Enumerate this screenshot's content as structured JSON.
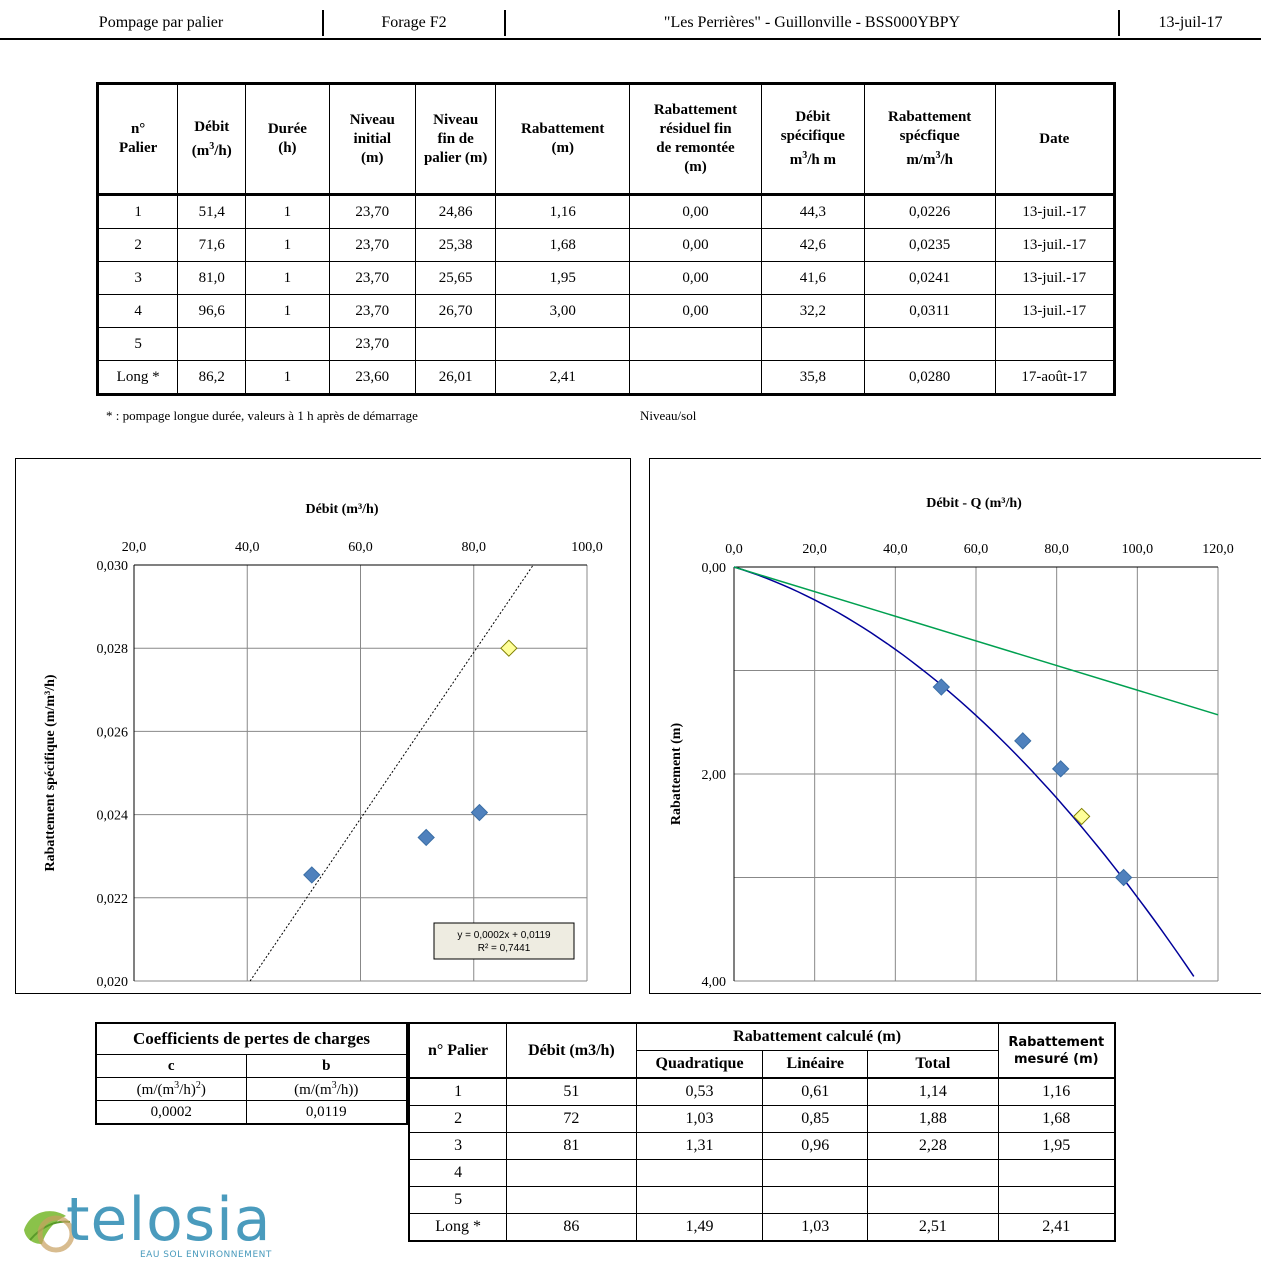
{
  "header": {
    "cells": [
      "Pompage par palier",
      "Forage F2",
      "\"Les Perrières\" - Guillonville - BSS000YBPY",
      "13-juil-17"
    ]
  },
  "main_table": {
    "headers": [
      "n° Palier",
      "Débit (m3/h)",
      "Durée (h)",
      "Niveau initial (m)",
      "Niveau fin de palier (m)",
      "Rabattement (m)",
      "Rabattement résiduel fin de remontée (m)",
      "Débit spécifique m3/h m",
      "Rabattement spécfique m/m3/h",
      "Date"
    ],
    "header_parts": {
      "palier": [
        "n°",
        "Palier"
      ],
      "debit": [
        "Débit",
        "(m",
        "3",
        "/h)"
      ],
      "duree": [
        "Durée",
        "(h)"
      ],
      "niveau_initial": [
        "Niveau",
        "initial",
        "(m)"
      ],
      "niveau_fin": [
        "Niveau",
        "fin de",
        "palier (m)"
      ],
      "rabattement": [
        "Rabattement",
        "(m)"
      ],
      "residuel": [
        "Rabattement",
        "résiduel fin",
        "de remontée",
        "(m)"
      ],
      "debit_spec": [
        "Débit",
        "spécifique",
        "m",
        "3",
        "/h m"
      ],
      "rab_spec": [
        "Rabattement",
        "spécfique",
        "m/m",
        "3",
        "/h"
      ],
      "date": [
        "Date"
      ]
    },
    "rows": [
      [
        "1",
        "51,4",
        "1",
        "23,70",
        "24,86",
        "1,16",
        "0,00",
        "44,3",
        "0,0226",
        "13-juil.-17"
      ],
      [
        "2",
        "71,6",
        "1",
        "23,70",
        "25,38",
        "1,68",
        "0,00",
        "42,6",
        "0,0235",
        "13-juil.-17"
      ],
      [
        "3",
        "81,0",
        "1",
        "23,70",
        "25,65",
        "1,95",
        "0,00",
        "41,6",
        "0,0241",
        "13-juil.-17"
      ],
      [
        "4",
        "96,6",
        "1",
        "23,70",
        "26,70",
        "3,00",
        "0,00",
        "32,2",
        "0,0311",
        "13-juil.-17"
      ],
      [
        "5",
        "",
        "",
        "23,70",
        "",
        "",
        "",
        "",
        "",
        ""
      ],
      [
        "Long *",
        "86,2",
        "1",
        "23,60",
        "26,01",
        "2,41",
        "",
        "35,8",
        "0,0280",
        "17-août-17"
      ]
    ]
  },
  "footnote": "* : pompage longue durée, valeurs à 1 h après de démarrage",
  "niveau_note": "Niveau/sol",
  "chart_data": [
    {
      "type": "scatter",
      "title": "Débit (m³/h)",
      "xlabel": "",
      "ylabel": "Rabattement spécifique (m/m³/h)",
      "xlim": [
        20,
        100
      ],
      "ylim": [
        0.02,
        0.03
      ],
      "x_ticks": [
        "20,0",
        "40,0",
        "60,0",
        "80,0",
        "100,0"
      ],
      "y_ticks": [
        "0,030",
        "0,028",
        "0,026",
        "0,024",
        "0,022",
        "0,020"
      ],
      "x_axis_position": "top",
      "grid": true,
      "series": [
        {
          "points": [
            [
              51.4,
              0.02255
            ],
            [
              71.6,
              0.02345
            ],
            [
              81.0,
              0.02405
            ]
          ],
          "marker": "diamond",
          "color": "#4f81bd"
        },
        {
          "points": [
            [
              86.2,
              0.028
            ]
          ],
          "marker": "diamond",
          "color": "#ffff99"
        }
      ],
      "trendline": {
        "slope": 0.0002,
        "intercept": 0.0119,
        "style": "dotted",
        "color": "#000000"
      },
      "annotation": [
        "y = 0,0002x  + 0,0119",
        "R² = 0,7441"
      ]
    },
    {
      "type": "line",
      "title": "Débit - Q (m³/h)",
      "xlabel": "",
      "ylabel": "Rabattement (m)",
      "xlim": [
        0,
        120
      ],
      "ylim": [
        4,
        0
      ],
      "y_inverted": true,
      "x_ticks": [
        "0,0",
        "20,0",
        "40,0",
        "60,0",
        "80,0",
        "100,0",
        "120,0"
      ],
      "y_ticks": [
        "0,00",
        "2,00",
        "4,00"
      ],
      "x_axis_position": "top",
      "grid": true,
      "series": [
        {
          "points": [
            [
              51.4,
              1.16
            ],
            [
              71.6,
              1.68
            ],
            [
              81.0,
              1.95
            ],
            [
              96.6,
              3.0
            ]
          ],
          "marker": "diamond",
          "color": "#4f81bd"
        },
        {
          "points": [
            [
              86.2,
              2.41
            ]
          ],
          "marker": "diamond",
          "color": "#ffff99"
        }
      ],
      "curves": [
        {
          "kind": "quadratic",
          "c": 0.0002,
          "b": 0.0119,
          "color": "#000099"
        },
        {
          "kind": "linear",
          "b": 0.0119,
          "color": "#00a050"
        }
      ]
    }
  ],
  "coef_table": {
    "title": "Coefficients de pertes de charges",
    "col_c": "c",
    "col_b": "b",
    "unit_c": [
      "(m/(m",
      "3",
      "/h)",
      "2",
      ")"
    ],
    "unit_b": [
      "(m/(m",
      "3",
      "/h))"
    ],
    "value_c": "0,0002",
    "value_b": "0,0119"
  },
  "calc_table": {
    "h_palier": "n° Palier",
    "h_debit": "Débit (m3/h)",
    "h_calcule": "Rabattement calculé (m)",
    "h_mesure": [
      "Rabattement",
      "mesuré (m)"
    ],
    "h_quad": "Quadratique",
    "h_lin": "Linéaire",
    "h_total": "Total",
    "rows": [
      [
        "1",
        "51",
        "0,53",
        "0,61",
        "1,14",
        "1,16"
      ],
      [
        "2",
        "72",
        "1,03",
        "0,85",
        "1,88",
        "1,68"
      ],
      [
        "3",
        "81",
        "1,31",
        "0,96",
        "2,28",
        "1,95"
      ],
      [
        "4",
        "",
        "",
        "",
        "",
        ""
      ],
      [
        "5",
        "",
        "",
        "",
        "",
        ""
      ],
      [
        "Long *",
        "86",
        "1,49",
        "1,03",
        "2,51",
        "2,41"
      ]
    ]
  },
  "logo": {
    "name": "telosia",
    "tagline": "EAU SOL ENVIRONNEMENT",
    "color": "#4a9bbd"
  }
}
